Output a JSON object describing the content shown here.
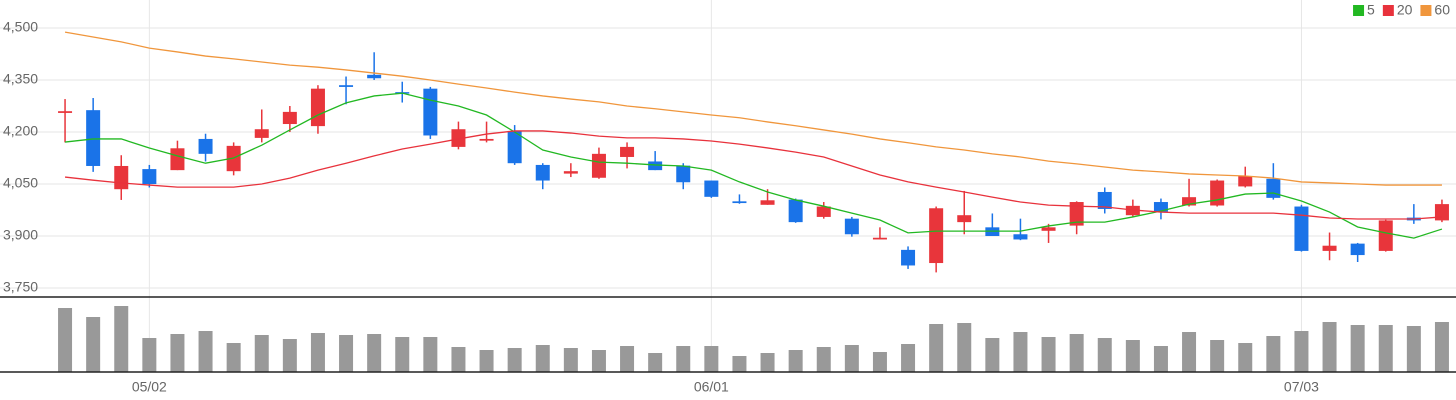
{
  "chart_data": [
    {
      "type": "candlestick",
      "categories": [
        null,
        null,
        null,
        "05/02",
        null,
        null,
        null,
        null,
        null,
        null,
        null,
        null,
        null,
        null,
        null,
        null,
        null,
        null,
        null,
        null,
        null,
        null,
        null,
        "06/01",
        null,
        null,
        null,
        null,
        null,
        null,
        null,
        null,
        null,
        null,
        null,
        null,
        null,
        null,
        null,
        null,
        null,
        null,
        null,
        null,
        "07/03",
        null,
        null,
        null,
        null,
        null
      ],
      "open": [
        4255,
        4263,
        4035,
        4093,
        4090,
        4180,
        4087,
        4183,
        4223,
        4217,
        4335,
        4365,
        4315,
        4325,
        4157,
        4175,
        4203,
        4105,
        4080,
        4068,
        4128,
        4115,
        4103,
        4060,
        4000,
        3990,
        4005,
        3955,
        3950,
        3890,
        3860,
        3822,
        3940,
        3925,
        3905,
        3915,
        3930,
        4027,
        3960,
        3998,
        3988,
        3988,
        4043,
        4065,
        3985,
        3857,
        3878,
        3857,
        3953,
        3945
      ],
      "high": [
        4295,
        4298,
        4133,
        4105,
        4175,
        4195,
        4170,
        4265,
        4275,
        4335,
        4360,
        4430,
        4345,
        4330,
        4230,
        4230,
        4220,
        4110,
        4110,
        4155,
        4170,
        4145,
        4110,
        4060,
        4020,
        4035,
        4008,
        3998,
        3955,
        3925,
        3870,
        3985,
        4030,
        3965,
        3950,
        3935,
        4000,
        4040,
        4005,
        4008,
        4065,
        4063,
        4100,
        4110,
        3990,
        3910,
        3880,
        3947,
        3992,
        4005
      ],
      "low": [
        4170,
        4085,
        4004,
        4040,
        4090,
        4115,
        4075,
        4170,
        4200,
        4195,
        4280,
        4350,
        4285,
        4180,
        4150,
        4170,
        4105,
        4035,
        4070,
        4065,
        4095,
        4090,
        4035,
        4010,
        3993,
        3990,
        3938,
        3950,
        3898,
        3890,
        3805,
        3795,
        3905,
        3900,
        3888,
        3880,
        3905,
        3965,
        3955,
        3948,
        3985,
        3985,
        4040,
        4005,
        3855,
        3830,
        3825,
        3855,
        3935,
        3940
      ],
      "close": [
        4260,
        4102,
        4102,
        4050,
        4153,
        4137,
        4160,
        4208,
        4258,
        4325,
        4330,
        4355,
        4312,
        4190,
        4208,
        4180,
        4110,
        4060,
        4087,
        4137,
        4157,
        4090,
        4055,
        4013,
        3995,
        4003,
        3940,
        3985,
        3905,
        3895,
        3815,
        3980,
        3960,
        3900,
        3890,
        3925,
        3998,
        3978,
        3987,
        3970,
        4012,
        4060,
        4073,
        4010,
        3857,
        3872,
        3845,
        3945,
        3945,
        3992
      ],
      "up_color": "#e8353b",
      "down_color": "#1a73e8",
      "lines": [
        {
          "name": "5",
          "color": "#22b822",
          "values": [
            4171,
            4180,
            4180,
            4154,
            4131,
            4110,
            4125,
            4162,
            4206,
            4249,
            4284,
            4304,
            4312,
            4292,
            4275,
            4249,
            4200,
            4148,
            4128,
            4113,
            4110,
            4105,
            4102,
            4090,
            4056,
            4027,
            4004,
            3986,
            3966,
            3946,
            3909,
            3914,
            3914,
            3914,
            3914,
            3929,
            3940,
            3940,
            3955,
            3972,
            3992,
            4004,
            4021,
            4024,
            4001,
            3969,
            3926,
            3909,
            3894,
            3920
          ]
        },
        {
          "name": "20",
          "color": "#e8323c",
          "values": [
            4070,
            4061,
            4053,
            4047,
            4041,
            4041,
            4041,
            4050,
            4067,
            4090,
            4110,
            4131,
            4151,
            4165,
            4180,
            4194,
            4203,
            4203,
            4197,
            4188,
            4183,
            4183,
            4180,
            4174,
            4165,
            4154,
            4142,
            4128,
            4102,
            4076,
            4056,
            4041,
            4027,
            4012,
            3998,
            3989,
            3986,
            3984,
            3975,
            3969,
            3966,
            3966,
            3966,
            3966,
            3960,
            3952,
            3949,
            3949,
            3949,
            3955
          ]
        },
        {
          "name": "60",
          "color": "#f0963c",
          "values": [
            4488,
            4474,
            4460,
            4442,
            4431,
            4419,
            4411,
            4402,
            4393,
            4387,
            4379,
            4370,
            4361,
            4350,
            4338,
            4327,
            4315,
            4304,
            4295,
            4287,
            4275,
            4267,
            4258,
            4249,
            4241,
            4229,
            4218,
            4206,
            4194,
            4180,
            4169,
            4157,
            4148,
            4137,
            4128,
            4116,
            4108,
            4099,
            4090,
            4085,
            4079,
            4076,
            4073,
            4067,
            4056,
            4053,
            4050,
            4047,
            4047,
            4047
          ]
        }
      ],
      "ylim": [
        3750,
        4500
      ],
      "yticks": [
        {
          "value": 3750,
          "label": "3,750"
        },
        {
          "value": 3900,
          "label": "3,900"
        },
        {
          "value": 4050,
          "label": "4,050"
        },
        {
          "value": 4200,
          "label": "4,200"
        },
        {
          "value": 4350,
          "label": "4,350"
        },
        {
          "value": 4500,
          "label": "4,500"
        }
      ],
      "grid": true,
      "legend": "top-right"
    },
    {
      "type": "bar",
      "color": "#999999",
      "values": [
        64,
        55,
        66,
        34,
        38,
        41,
        29,
        37,
        33,
        39,
        37,
        38,
        35,
        35,
        25,
        22,
        24,
        27,
        24,
        22,
        26,
        19,
        26,
        26,
        16,
        19,
        22,
        25,
        27,
        20,
        28,
        48,
        49,
        34,
        40,
        35,
        38,
        34,
        32,
        26,
        40,
        32,
        29,
        36,
        41,
        50,
        47,
        47,
        46,
        50
      ],
      "ylim": [
        0,
        74
      ]
    }
  ]
}
